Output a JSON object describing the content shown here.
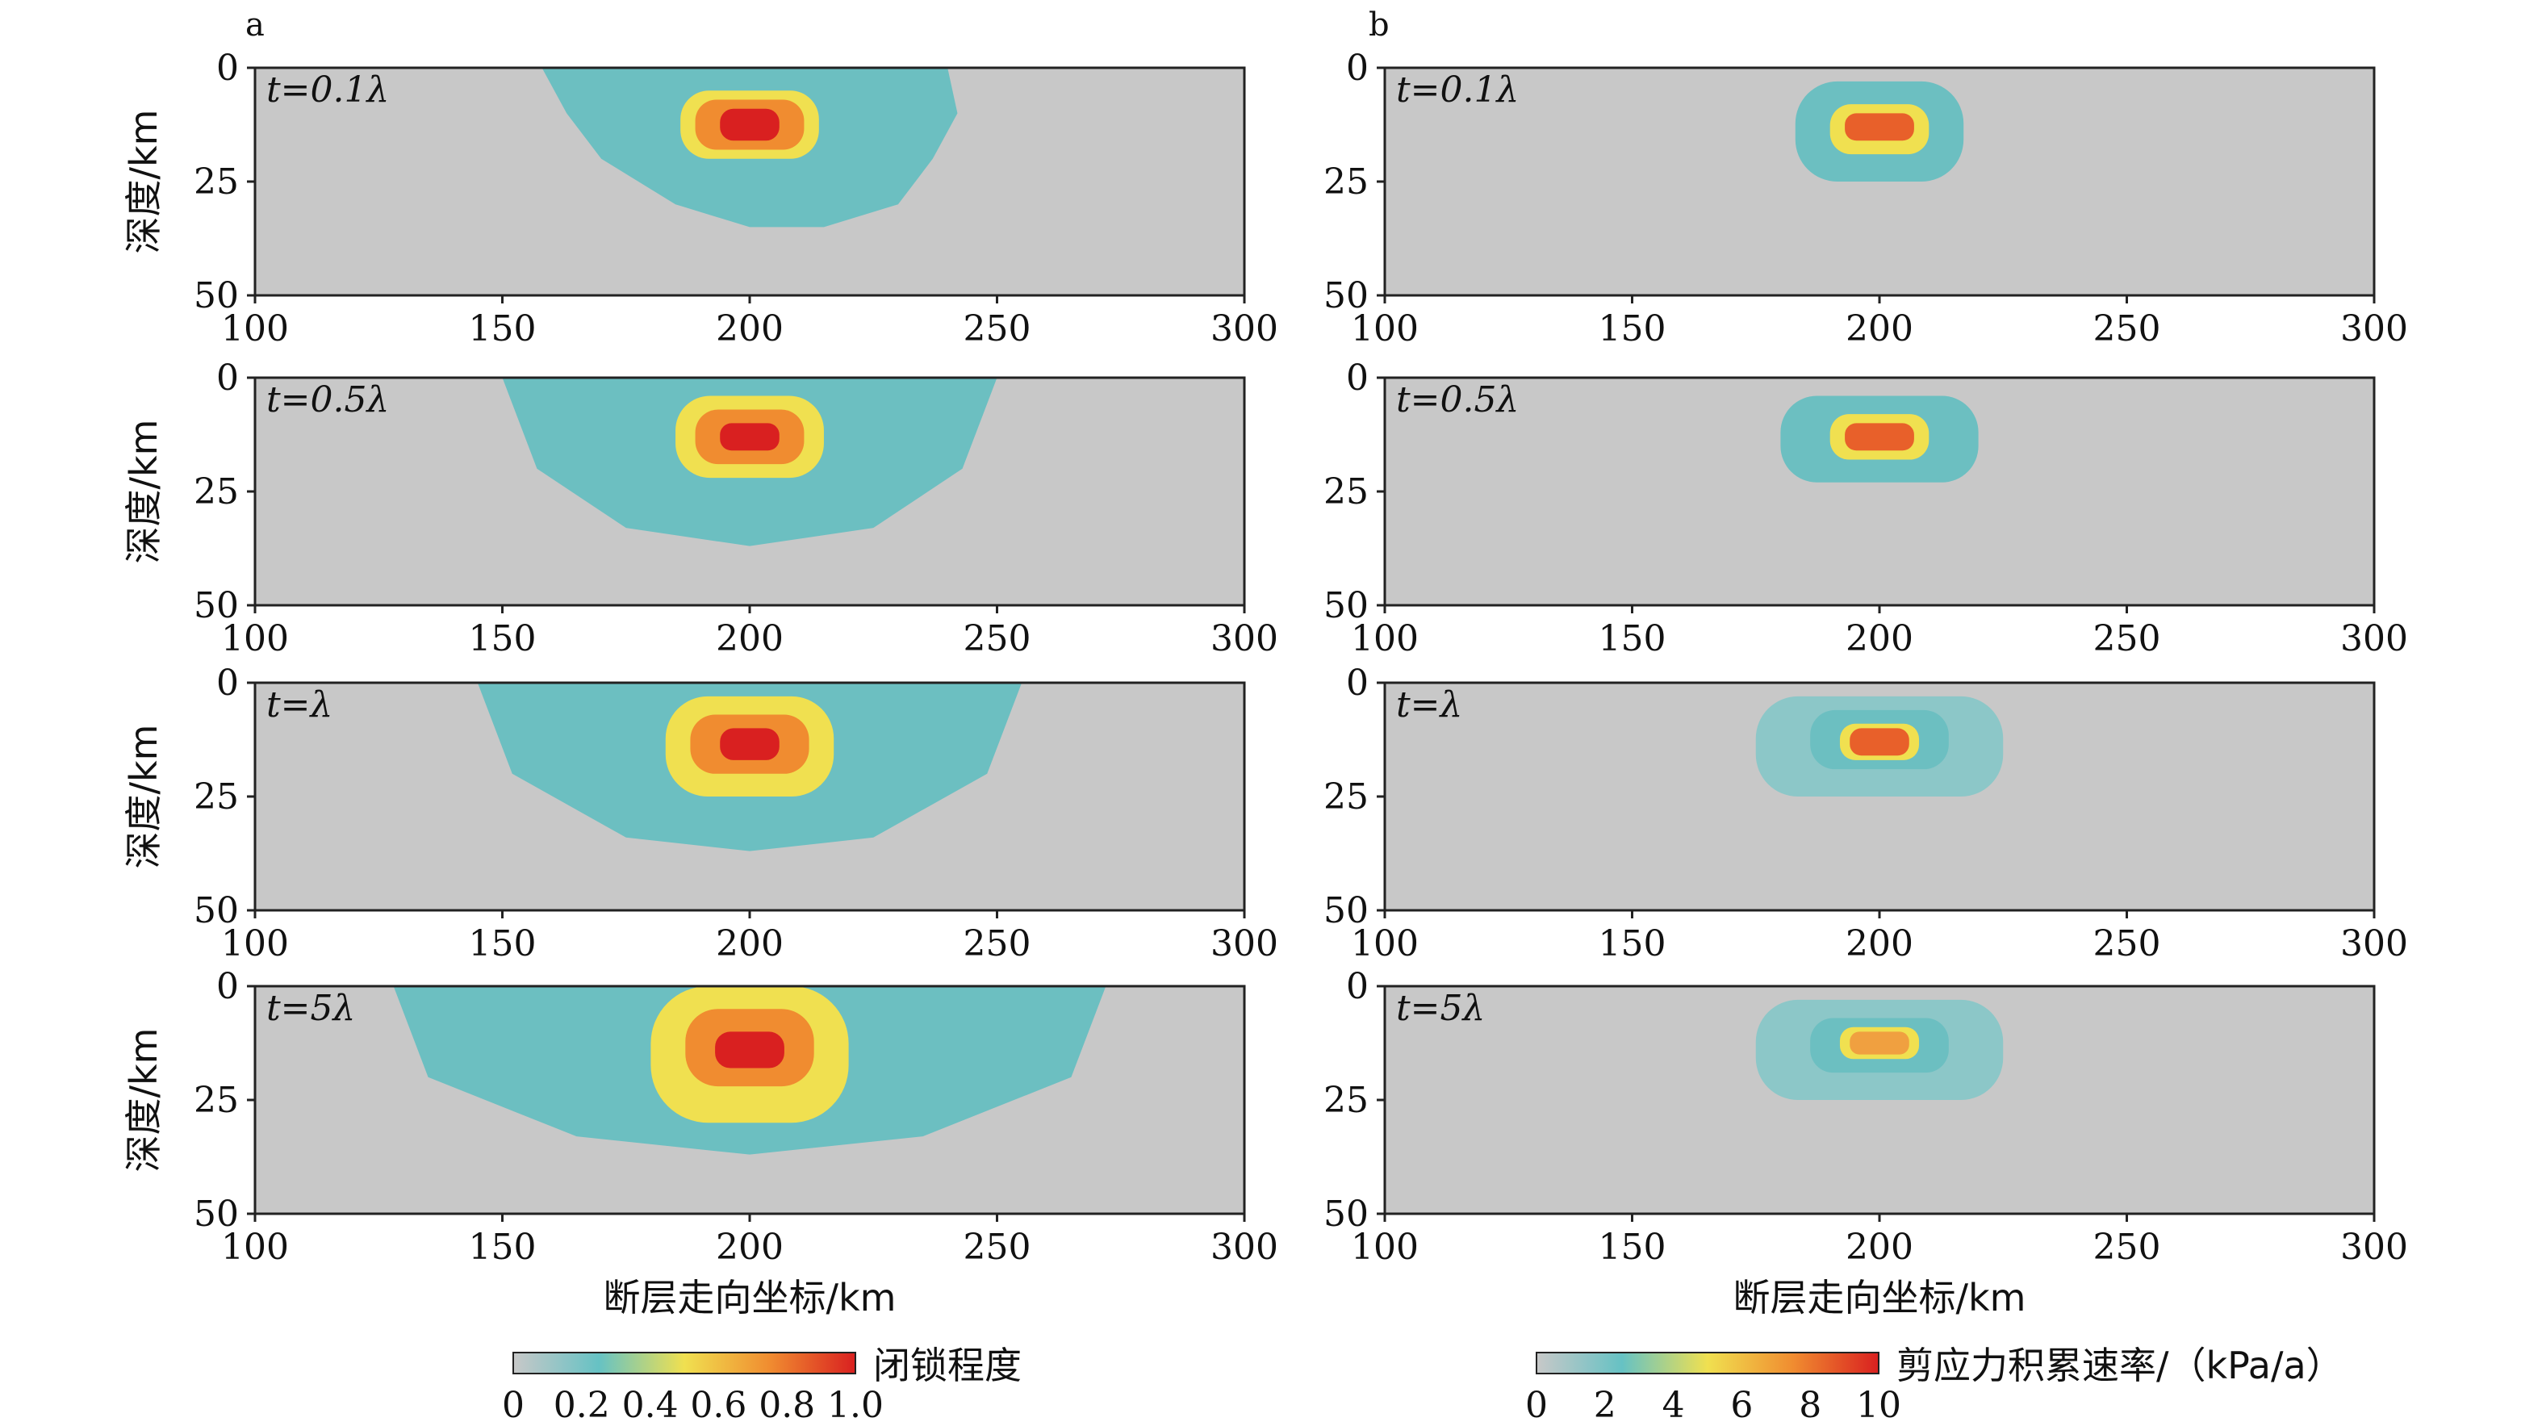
{
  "chart_data": [
    {
      "panel": "a",
      "type": "heatmap",
      "xlabel": "断层走向坐标/km",
      "ylabel": "深度/km",
      "xlim": [
        100,
        300
      ],
      "ylim": [
        0,
        50
      ],
      "xticks": [
        "100",
        "150",
        "200",
        "250",
        "300"
      ],
      "yticks": [
        "0",
        "25",
        "50"
      ],
      "colorbar": {
        "label": "闭锁程度",
        "range": [
          0,
          1.0
        ],
        "ticks": [
          "0",
          "0.2",
          "0.4",
          "0.6",
          "0.8",
          "1.0"
        ],
        "colors": [
          "#c8c8c8",
          "#66c2c4",
          "#f0e050",
          "#f08c30",
          "#d92020"
        ]
      },
      "subplots": [
        {
          "time_label": "t=0.1λ",
          "contours": [
            {
              "level": 0.2,
              "color": "#6cbfc1",
              "x": [
                158,
                163,
                170,
                185,
                200,
                215,
                230,
                237,
                242,
                240,
                232,
                220,
                200,
                180,
                168,
                160
              ],
              "y": [
                0,
                10,
                20,
                30,
                35,
                35,
                30,
                20,
                10,
                0,
                0,
                0,
                0,
                0,
                0,
                0
              ]
            },
            {
              "level": 0.4,
              "color": "#f0e050",
              "x": [
                186,
                214
              ],
              "y": [
                5,
                20
              ]
            },
            {
              "level": 0.6,
              "color": "#f08c30",
              "x": [
                189,
                211
              ],
              "y": [
                7,
                18
              ]
            },
            {
              "level": 0.8,
              "color": "#d92020",
              "x": [
                194,
                206
              ],
              "y": [
                9,
                16
              ]
            }
          ]
        },
        {
          "time_label": "t=0.5λ",
          "contours": [
            {
              "level": 0.2,
              "color": "#6cbfc1",
              "x": [
                150,
                157,
                175,
                200,
                225,
                243,
                250
              ],
              "y": [
                0,
                20,
                33,
                37,
                33,
                20,
                0
              ]
            },
            {
              "level": 0.4,
              "color": "#f0e050",
              "x": [
                185,
                215
              ],
              "y": [
                4,
                22
              ]
            },
            {
              "level": 0.6,
              "color": "#f08c30",
              "x": [
                189,
                211
              ],
              "y": [
                7,
                19
              ]
            },
            {
              "level": 0.8,
              "color": "#d92020",
              "x": [
                194,
                206
              ],
              "y": [
                10,
                16
              ]
            }
          ]
        },
        {
          "time_label": "t=λ",
          "contours": [
            {
              "level": 0.2,
              "color": "#6cbfc1",
              "x": [
                145,
                152,
                175,
                200,
                225,
                248,
                255
              ],
              "y": [
                0,
                20,
                34,
                37,
                34,
                20,
                0
              ]
            },
            {
              "level": 0.4,
              "color": "#f0e050",
              "x": [
                183,
                217
              ],
              "y": [
                3,
                25
              ]
            },
            {
              "level": 0.6,
              "color": "#f08c30",
              "x": [
                188,
                212
              ],
              "y": [
                7,
                20
              ]
            },
            {
              "level": 0.8,
              "color": "#d92020",
              "x": [
                194,
                206
              ],
              "y": [
                10,
                17
              ]
            }
          ]
        },
        {
          "time_label": "t=5λ",
          "contours": [
            {
              "level": 0.2,
              "color": "#6cbfc1",
              "x": [
                128,
                135,
                165,
                200,
                235,
                265,
                272
              ],
              "y": [
                0,
                20,
                33,
                37,
                33,
                20,
                0
              ]
            },
            {
              "level": 0.4,
              "color": "#f0e050",
              "x": [
                180,
                220
              ],
              "y": [
                0,
                30
              ]
            },
            {
              "level": 0.6,
              "color": "#f08c30",
              "x": [
                187,
                213
              ],
              "y": [
                5,
                22
              ]
            },
            {
              "level": 0.8,
              "color": "#d92020",
              "x": [
                193,
                207
              ],
              "y": [
                10,
                18
              ]
            }
          ]
        }
      ]
    },
    {
      "panel": "b",
      "type": "heatmap",
      "xlabel": "断层走向坐标/km",
      "ylabel": "",
      "xlim": [
        100,
        300
      ],
      "ylim": [
        0,
        50
      ],
      "xticks": [
        "100",
        "150",
        "200",
        "250",
        "300"
      ],
      "yticks": [
        "0",
        "25",
        "50"
      ],
      "colorbar": {
        "label": "剪应力积累速率/（kPa/a）",
        "range": [
          0,
          10
        ],
        "ticks": [
          "0",
          "2",
          "4",
          "6",
          "8",
          "10"
        ],
        "colors": [
          "#c8c8c8",
          "#66c2c4",
          "#f0e050",
          "#f08c30",
          "#d92020"
        ]
      },
      "subplots": [
        {
          "time_label": "t=0.1λ",
          "contours": [
            {
              "level": 2,
              "color": "#6cbfc1",
              "x": [
                183,
                217
              ],
              "y": [
                3,
                25
              ]
            },
            {
              "level": 6,
              "color": "#f0e050",
              "x": [
                190,
                210
              ],
              "y": [
                8,
                19
              ]
            },
            {
              "level": 8,
              "color": "#e8602a",
              "x": [
                193,
                207
              ],
              "y": [
                10,
                16
              ]
            }
          ]
        },
        {
          "time_label": "t=0.5λ",
          "contours": [
            {
              "level": 2,
              "color": "#6cbfc1",
              "x": [
                180,
                220
              ],
              "y": [
                4,
                23
              ]
            },
            {
              "level": 6,
              "color": "#f0e050",
              "x": [
                190,
                210
              ],
              "y": [
                8,
                18
              ]
            },
            {
              "level": 8,
              "color": "#e8602a",
              "x": [
                193,
                207
              ],
              "y": [
                10,
                16
              ]
            }
          ]
        },
        {
          "time_label": "t=λ",
          "contours": [
            {
              "level": 1,
              "color": "#8cc7c8",
              "x": [
                175,
                225
              ],
              "y": [
                3,
                25
              ]
            },
            {
              "level": 2,
              "color": "#6cbfc1",
              "x": [
                186,
                214
              ],
              "y": [
                6,
                19
              ]
            },
            {
              "level": 6,
              "color": "#f0e050",
              "x": [
                192,
                208
              ],
              "y": [
                9,
                17
              ]
            },
            {
              "level": 8,
              "color": "#e8602a",
              "x": [
                194,
                206
              ],
              "y": [
                10,
                16
              ]
            }
          ]
        },
        {
          "time_label": "t=5λ",
          "contours": [
            {
              "level": 1,
              "color": "#8cc7c8",
              "x": [
                175,
                225
              ],
              "y": [
                3,
                25
              ]
            },
            {
              "level": 2,
              "color": "#6cbfc1",
              "x": [
                186,
                214
              ],
              "y": [
                7,
                19
              ]
            },
            {
              "level": 6,
              "color": "#f0e050",
              "x": [
                192,
                208
              ],
              "y": [
                9,
                16
              ]
            },
            {
              "level": 7,
              "color": "#f0a040",
              "x": [
                194,
                206
              ],
              "y": [
                10,
                15
              ]
            }
          ]
        }
      ]
    }
  ]
}
